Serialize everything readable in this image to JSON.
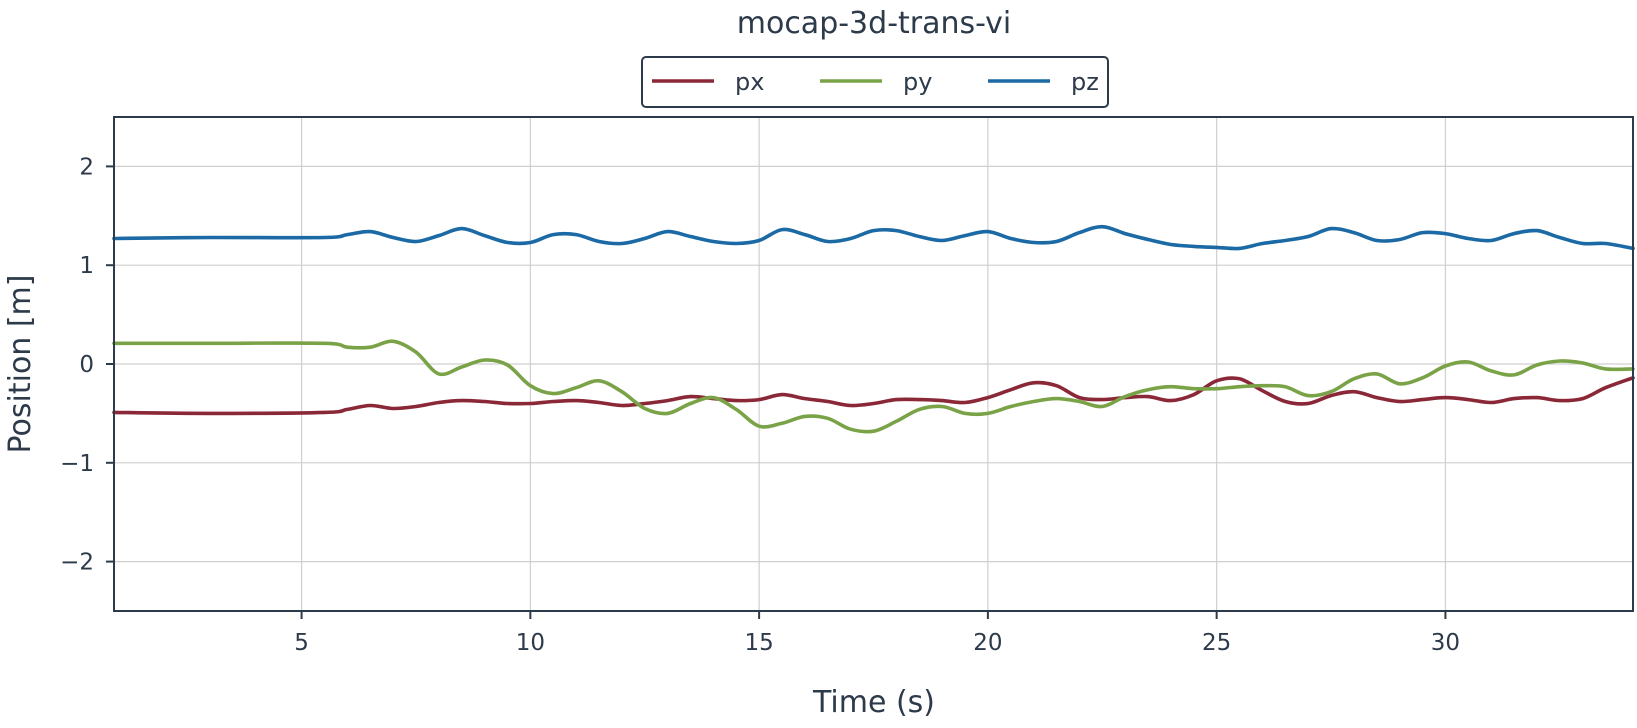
{
  "chart_data": {
    "type": "line",
    "title": "mocap-3d-trans-vi",
    "xlabel": "Time (s)",
    "ylabel": "Position [m]",
    "xlim": [
      0.9,
      34.1
    ],
    "ylim": [
      -2.5,
      2.5
    ],
    "xticks": [
      5,
      10,
      15,
      20,
      25,
      30
    ],
    "yticks": [
      -2,
      -1,
      0,
      1,
      2
    ],
    "xtick_labels": [
      "5",
      "10",
      "15",
      "20",
      "25",
      "30"
    ],
    "ytick_labels": [
      "−2",
      "−1",
      "0",
      "1",
      "2"
    ],
    "grid": true,
    "legend": {
      "placement": "top-center, above plot",
      "entries": [
        "px",
        "py",
        "pz"
      ]
    },
    "series": [
      {
        "name": "px",
        "color": "#8b2837",
        "x": [
          0.9,
          3,
          5.5,
          6,
          6.5,
          7,
          7.5,
          8,
          8.5,
          9,
          9.5,
          10,
          10.5,
          11,
          11.5,
          12,
          12.5,
          13,
          13.5,
          14,
          14.5,
          15,
          15.5,
          16,
          16.5,
          17,
          17.5,
          18,
          18.5,
          19,
          19.5,
          20,
          20.5,
          21,
          21.5,
          22,
          22.5,
          23,
          23.5,
          24,
          24.5,
          25,
          25.5,
          26,
          26.5,
          27,
          27.5,
          28,
          28.5,
          29,
          29.5,
          30,
          30.5,
          31,
          31.5,
          32,
          32.5,
          33,
          33.5,
          34.1
        ],
        "y": [
          -0.49,
          -0.5,
          -0.49,
          -0.46,
          -0.42,
          -0.45,
          -0.43,
          -0.39,
          -0.37,
          -0.38,
          -0.4,
          -0.4,
          -0.38,
          -0.37,
          -0.39,
          -0.42,
          -0.4,
          -0.37,
          -0.33,
          -0.35,
          -0.37,
          -0.36,
          -0.31,
          -0.35,
          -0.38,
          -0.42,
          -0.4,
          -0.36,
          -0.36,
          -0.37,
          -0.39,
          -0.34,
          -0.26,
          -0.19,
          -0.22,
          -0.34,
          -0.36,
          -0.34,
          -0.33,
          -0.37,
          -0.31,
          -0.17,
          -0.15,
          -0.27,
          -0.38,
          -0.4,
          -0.32,
          -0.28,
          -0.34,
          -0.38,
          -0.36,
          -0.34,
          -0.36,
          -0.39,
          -0.35,
          -0.34,
          -0.37,
          -0.35,
          -0.24,
          -0.14
        ]
      },
      {
        "name": "py",
        "color": "#7aa348",
        "x": [
          0.9,
          3,
          5.5,
          6,
          6.5,
          7,
          7.5,
          8,
          8.5,
          9,
          9.5,
          10,
          10.5,
          11,
          11.5,
          12,
          12.5,
          13,
          13.5,
          14,
          14.5,
          15,
          15.5,
          16,
          16.5,
          17,
          17.5,
          18,
          18.5,
          19,
          19.5,
          20,
          20.5,
          21,
          21.5,
          22,
          22.5,
          23,
          23.5,
          24,
          24.5,
          25,
          25.5,
          26,
          26.5,
          27,
          27.5,
          28,
          28.5,
          29,
          29.5,
          30,
          30.5,
          31,
          31.5,
          32,
          32.5,
          33,
          33.5,
          34.1
        ],
        "y": [
          0.21,
          0.21,
          0.21,
          0.17,
          0.17,
          0.23,
          0.12,
          -0.1,
          -0.03,
          0.04,
          -0.01,
          -0.22,
          -0.3,
          -0.24,
          -0.17,
          -0.28,
          -0.45,
          -0.5,
          -0.4,
          -0.34,
          -0.46,
          -0.63,
          -0.6,
          -0.53,
          -0.55,
          -0.66,
          -0.68,
          -0.58,
          -0.46,
          -0.43,
          -0.5,
          -0.5,
          -0.43,
          -0.38,
          -0.35,
          -0.38,
          -0.43,
          -0.33,
          -0.26,
          -0.23,
          -0.25,
          -0.25,
          -0.23,
          -0.22,
          -0.23,
          -0.32,
          -0.28,
          -0.15,
          -0.1,
          -0.2,
          -0.14,
          -0.02,
          0.02,
          -0.07,
          -0.11,
          -0.01,
          0.03,
          0.01,
          -0.05,
          -0.05
        ]
      },
      {
        "name": "pz",
        "color": "#1b6aa5",
        "x": [
          0.9,
          3,
          5.5,
          6,
          6.5,
          7,
          7.5,
          8,
          8.5,
          9,
          9.5,
          10,
          10.5,
          11,
          11.5,
          12,
          12.5,
          13,
          13.5,
          14,
          14.5,
          15,
          15.5,
          16,
          16.5,
          17,
          17.5,
          18,
          18.5,
          19,
          19.5,
          20,
          20.5,
          21,
          21.5,
          22,
          22.5,
          23,
          23.5,
          24,
          24.5,
          25,
          25.5,
          26,
          26.5,
          27,
          27.5,
          28,
          28.5,
          29,
          29.5,
          30,
          30.5,
          31,
          31.5,
          32,
          32.5,
          33,
          33.5,
          34.1
        ],
        "y": [
          1.27,
          1.28,
          1.28,
          1.31,
          1.34,
          1.28,
          1.24,
          1.3,
          1.37,
          1.3,
          1.23,
          1.23,
          1.31,
          1.31,
          1.24,
          1.22,
          1.27,
          1.34,
          1.29,
          1.24,
          1.22,
          1.25,
          1.36,
          1.31,
          1.24,
          1.27,
          1.35,
          1.35,
          1.29,
          1.25,
          1.3,
          1.34,
          1.27,
          1.23,
          1.24,
          1.33,
          1.39,
          1.32,
          1.26,
          1.21,
          1.19,
          1.18,
          1.17,
          1.22,
          1.25,
          1.29,
          1.37,
          1.33,
          1.25,
          1.26,
          1.33,
          1.32,
          1.27,
          1.25,
          1.32,
          1.35,
          1.28,
          1.22,
          1.22,
          1.17
        ]
      }
    ]
  }
}
